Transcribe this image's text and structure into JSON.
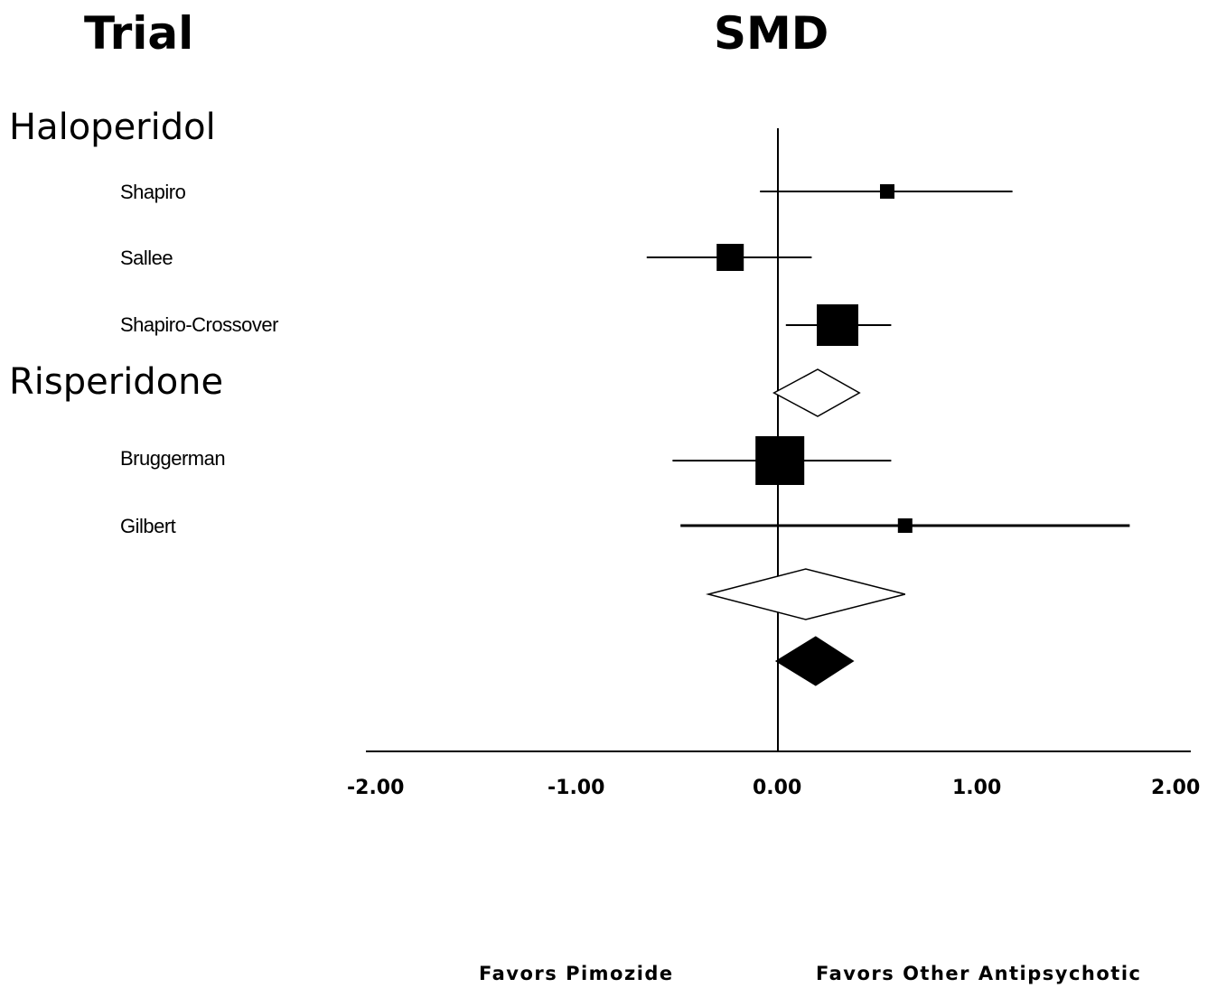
{
  "chart_data": {
    "type": "forest",
    "column_titles": {
      "trial": "Trial",
      "effect": "SMD"
    },
    "x_ticks": [
      "-2.00",
      "-1.00",
      "0.00",
      "1.00",
      "2.00"
    ],
    "xlim": [
      -2,
      2
    ],
    "favors_left": "Favors Pimozide",
    "favors_right": "Favors Other Antipsychotic",
    "groups": [
      {
        "name": "Haloperidol",
        "studies": [
          {
            "name": "Shapiro",
            "smd": 0.55,
            "ci_low": -0.09,
            "ci_high": 1.18,
            "weight": "small"
          },
          {
            "name": "Sallee",
            "smd": -0.24,
            "ci_low": -0.66,
            "ci_high": 0.17,
            "weight": "medium"
          },
          {
            "name": "Shapiro-Crossover",
            "smd": 0.3,
            "ci_low": 0.04,
            "ci_high": 0.57,
            "weight": "large"
          }
        ],
        "subtotal": {
          "smd": 0.2,
          "ci_low": -0.02,
          "ci_high": 0.41
        }
      },
      {
        "name": "Risperidone",
        "studies": [
          {
            "name": "Bruggerman",
            "smd": 0.01,
            "ci_low": -0.53,
            "ci_high": 0.57,
            "weight": "largest"
          },
          {
            "name": "Gilbert",
            "smd": 0.64,
            "ci_low": -0.49,
            "ci_high": 1.77,
            "weight": "small"
          }
        ],
        "subtotal": {
          "smd": 0.14,
          "ci_low": -0.35,
          "ci_high": 0.64
        }
      }
    ],
    "overall": {
      "smd": 0.19,
      "ci_low": -0.01,
      "ci_high": 0.38
    }
  }
}
